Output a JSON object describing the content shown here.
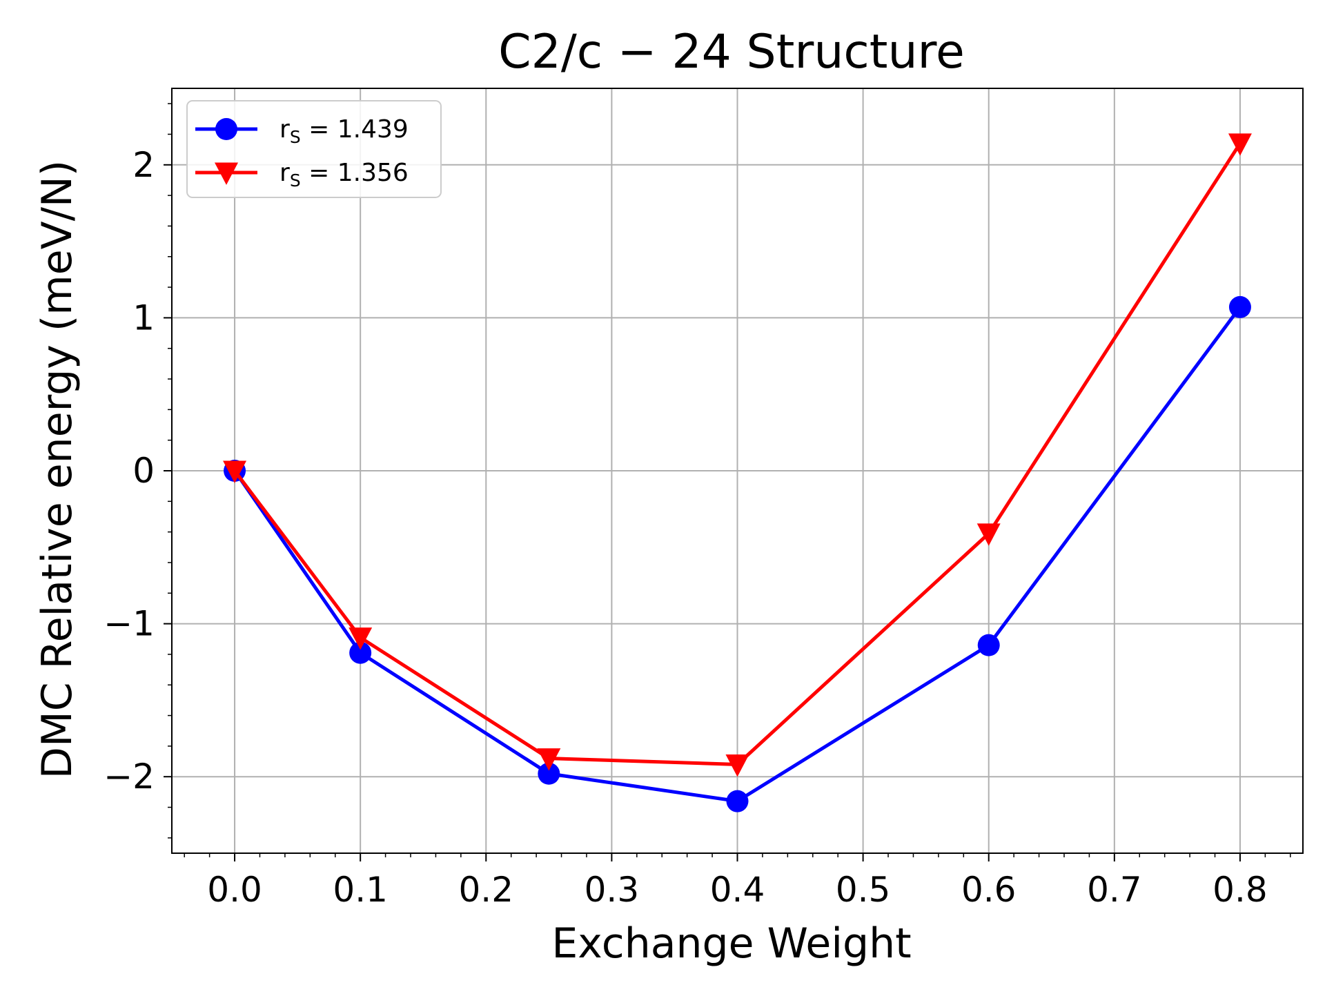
{
  "chart_data": {
    "type": "line",
    "title": "C2/c − 24 Structure",
    "xlabel": "Exchange Weight",
    "ylabel": "DMC Relative energy (meV/N)",
    "x": [
      0.0,
      0.1,
      0.25,
      0.4,
      0.6,
      0.8
    ],
    "xlim": [
      -0.05,
      0.85
    ],
    "ylim": [
      -2.5,
      2.5
    ],
    "xticks": [
      0.0,
      0.1,
      0.2,
      0.3,
      0.4,
      0.5,
      0.6,
      0.7,
      0.8
    ],
    "xtick_labels": [
      "0.0",
      "0.1",
      "0.2",
      "0.3",
      "0.4",
      "0.5",
      "0.6",
      "0.7",
      "0.8"
    ],
    "yticks": [
      -2,
      -1,
      0,
      1,
      2
    ],
    "ytick_labels": [
      "−2",
      "−1",
      "0",
      "1",
      "2"
    ],
    "grid": true,
    "legend_position": "top-left",
    "series": [
      {
        "name": "r_S = 1.439",
        "legend_text": "= 1.439",
        "color": "#0000ff",
        "marker": "circle",
        "values": [
          0.0,
          -1.19,
          -1.98,
          -2.16,
          -1.14,
          1.07
        ]
      },
      {
        "name": "r_S = 1.356",
        "legend_text": "= 1.356",
        "color": "#ff0000",
        "marker": "triangle-down",
        "values": [
          0.0,
          -1.09,
          -1.88,
          -1.92,
          -0.41,
          2.14
        ]
      }
    ]
  }
}
